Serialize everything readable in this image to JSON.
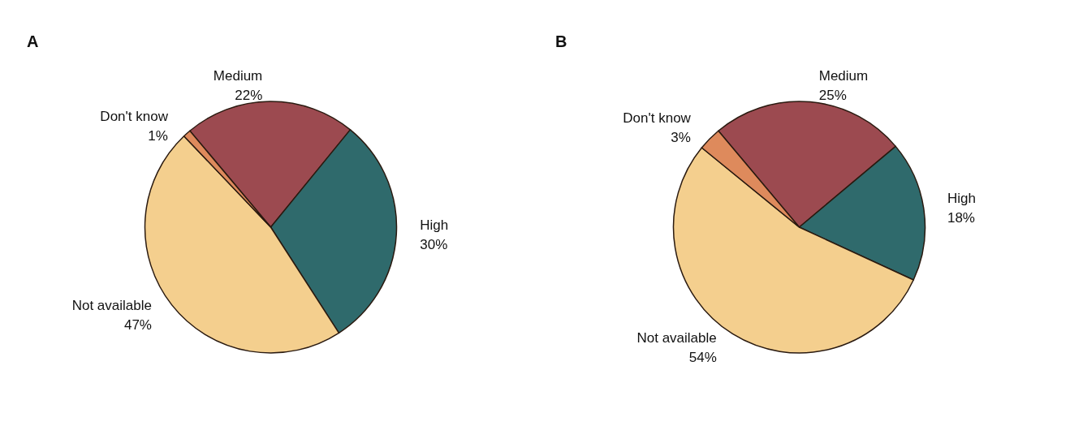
{
  "chart_data": [
    {
      "type": "pie",
      "title": "A",
      "categories": [
        "Medium",
        "High",
        "Not available",
        "Don't know"
      ],
      "values": [
        22,
        30,
        47,
        1
      ],
      "value_labels": [
        "22%",
        "30%",
        "47%",
        "1%"
      ],
      "colors": [
        "#9c4a50",
        "#2f6a6c",
        "#f4cf8e",
        "#de8a5c"
      ],
      "legend": false
    },
    {
      "type": "pie",
      "title": "B",
      "categories": [
        "Medium",
        "High",
        "Not available",
        "Don't know"
      ],
      "values": [
        25,
        18,
        54,
        3
      ],
      "value_labels": [
        "25%",
        "18%",
        "54%",
        "3%"
      ],
      "colors": [
        "#9c4a50",
        "#2f6a6c",
        "#f4cf8e",
        "#de8a5c"
      ],
      "legend": false
    }
  ]
}
